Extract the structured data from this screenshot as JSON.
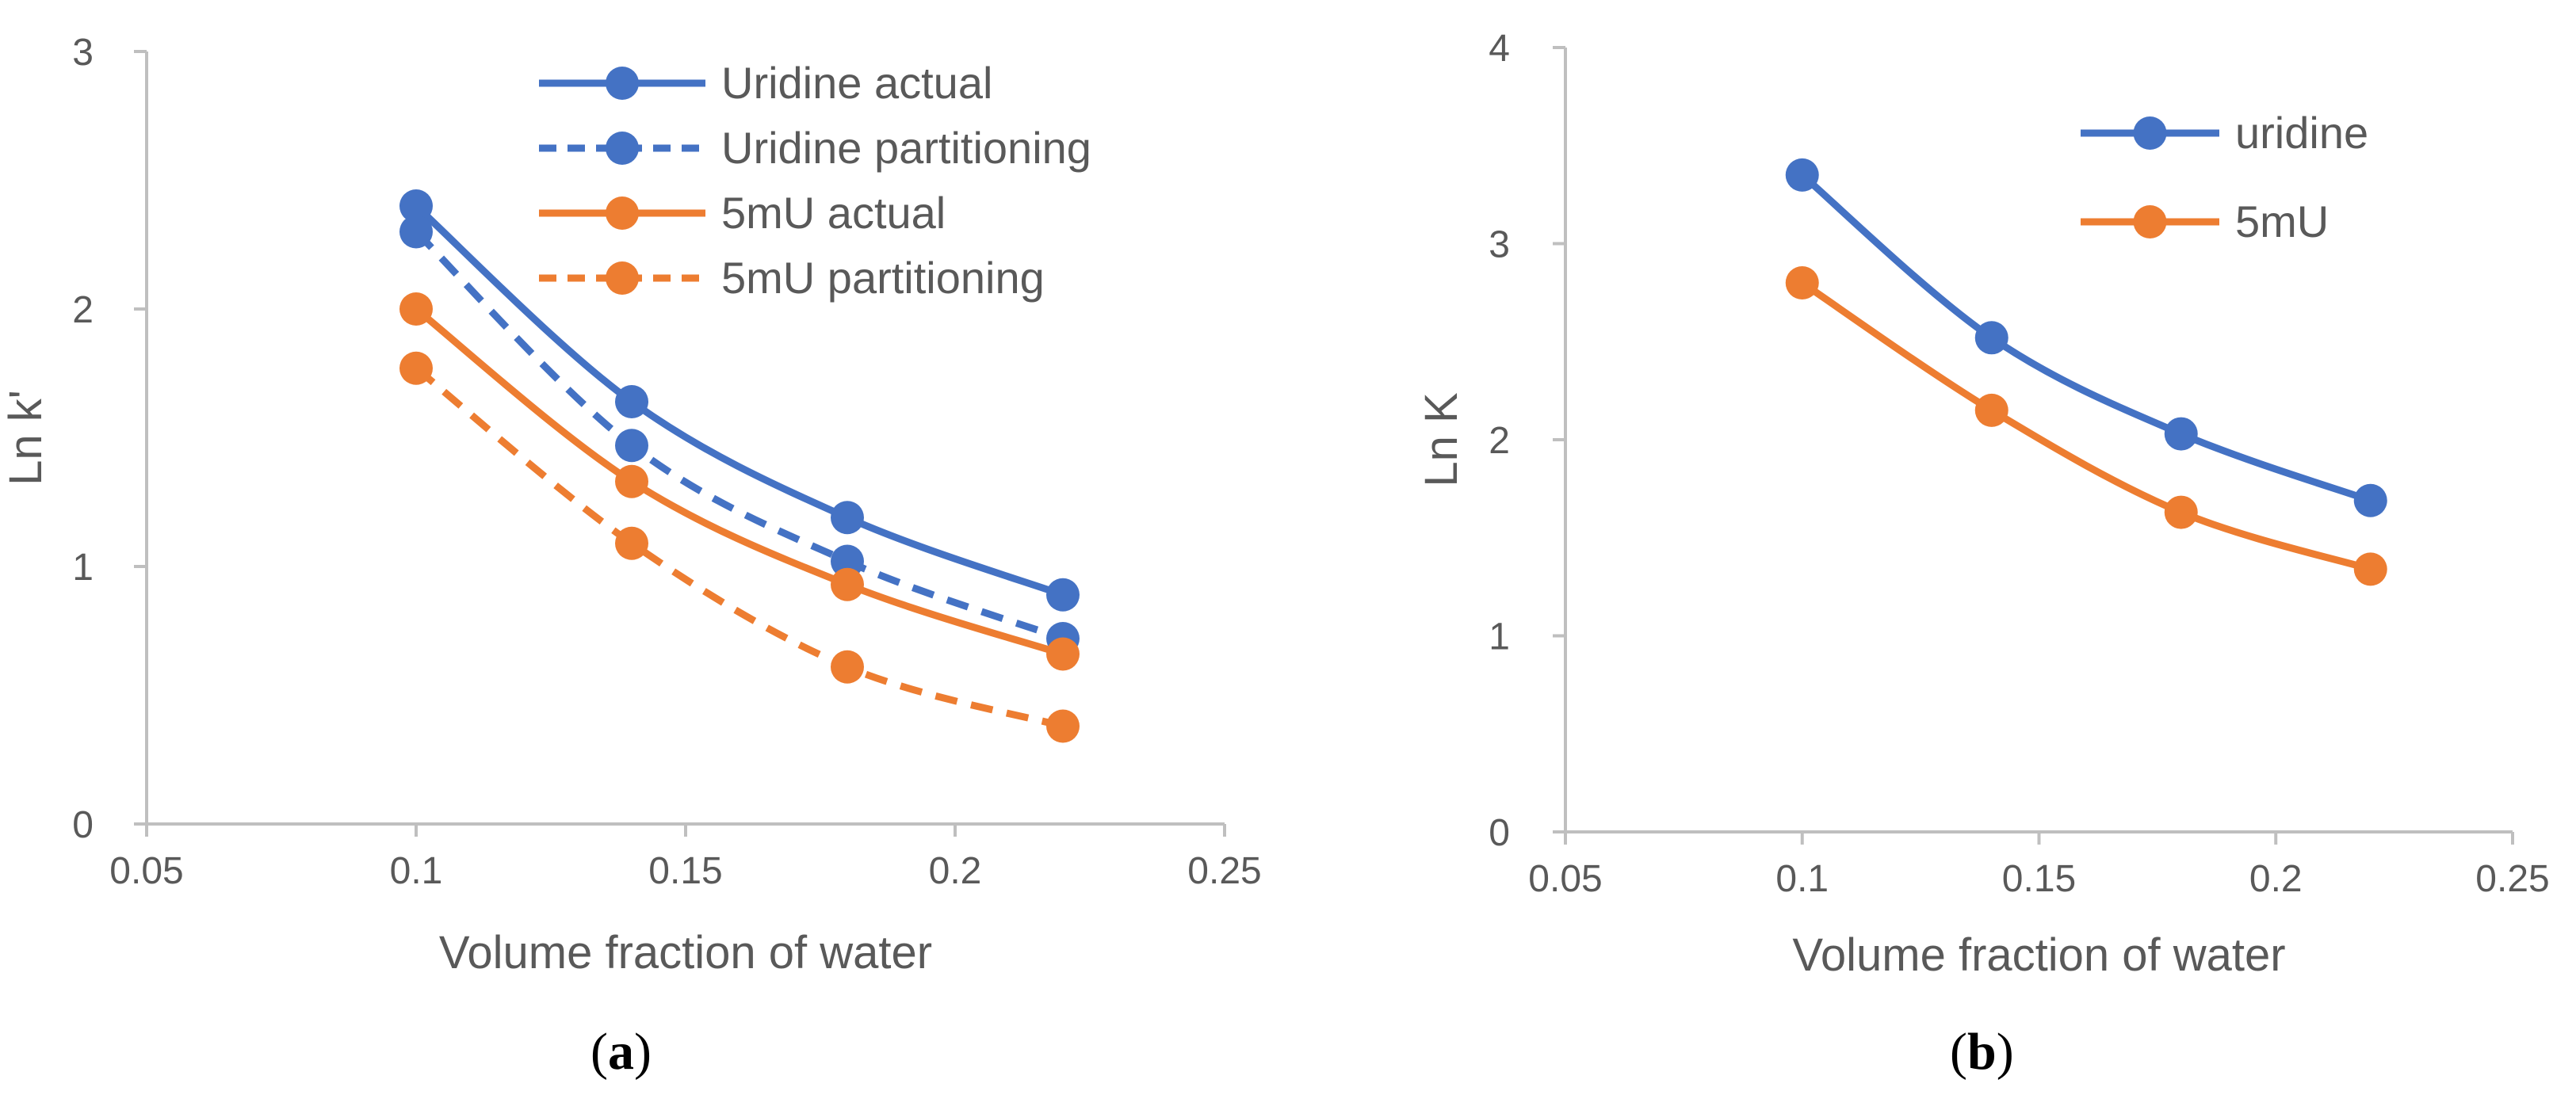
{
  "chart_data": [
    {
      "type": "line",
      "panel_label": "a",
      "xlabel": "Volume fraction of water",
      "ylabel": "Ln k'",
      "xlim": [
        0.05,
        0.25
      ],
      "ylim": [
        0,
        3
      ],
      "x_ticks": [
        "0.05",
        "0.1",
        "0.15",
        "0.2",
        "0.25"
      ],
      "y_ticks": [
        "0",
        "1",
        "2",
        "3"
      ],
      "grid": false,
      "legend_position": "top-right",
      "x": [
        0.1,
        0.14,
        0.18,
        0.22
      ],
      "series": [
        {
          "name": "Uridine actual",
          "color": "#4472C4",
          "dash": "solid",
          "values": [
            2.4,
            1.64,
            1.19,
            0.89
          ]
        },
        {
          "name": "Uridine partitioning",
          "color": "#4472C4",
          "dash": "dashed",
          "values": [
            2.3,
            1.47,
            1.02,
            0.72
          ]
        },
        {
          "name": "5mU actual",
          "color": "#ED7D31",
          "dash": "solid",
          "values": [
            2.0,
            1.33,
            0.93,
            0.66
          ]
        },
        {
          "name": "5mU partitioning",
          "color": "#ED7D31",
          "dash": "dashed",
          "values": [
            1.77,
            1.09,
            0.61,
            0.38
          ]
        }
      ]
    },
    {
      "type": "line",
      "panel_label": "b",
      "xlabel": "Volume fraction of water",
      "ylabel": "Ln K",
      "xlim": [
        0.05,
        0.25
      ],
      "ylim": [
        0,
        4
      ],
      "x_ticks": [
        "0.05",
        "0.1",
        "0.15",
        "0.2",
        "0.25"
      ],
      "y_ticks": [
        "0",
        "1",
        "2",
        "3",
        "4"
      ],
      "grid": false,
      "legend_position": "top-right",
      "x": [
        0.1,
        0.14,
        0.18,
        0.22
      ],
      "series": [
        {
          "name": "uridine",
          "color": "#4472C4",
          "dash": "solid",
          "values": [
            3.35,
            2.52,
            2.03,
            1.69
          ]
        },
        {
          "name": "5mU",
          "color": "#ED7D31",
          "dash": "solid",
          "values": [
            2.8,
            2.15,
            1.63,
            1.34
          ]
        }
      ]
    }
  ],
  "captions": {
    "a_open": "(",
    "a": "a",
    "a_close": ")",
    "b_open": "(",
    "b": "b",
    "b_close": ")"
  }
}
